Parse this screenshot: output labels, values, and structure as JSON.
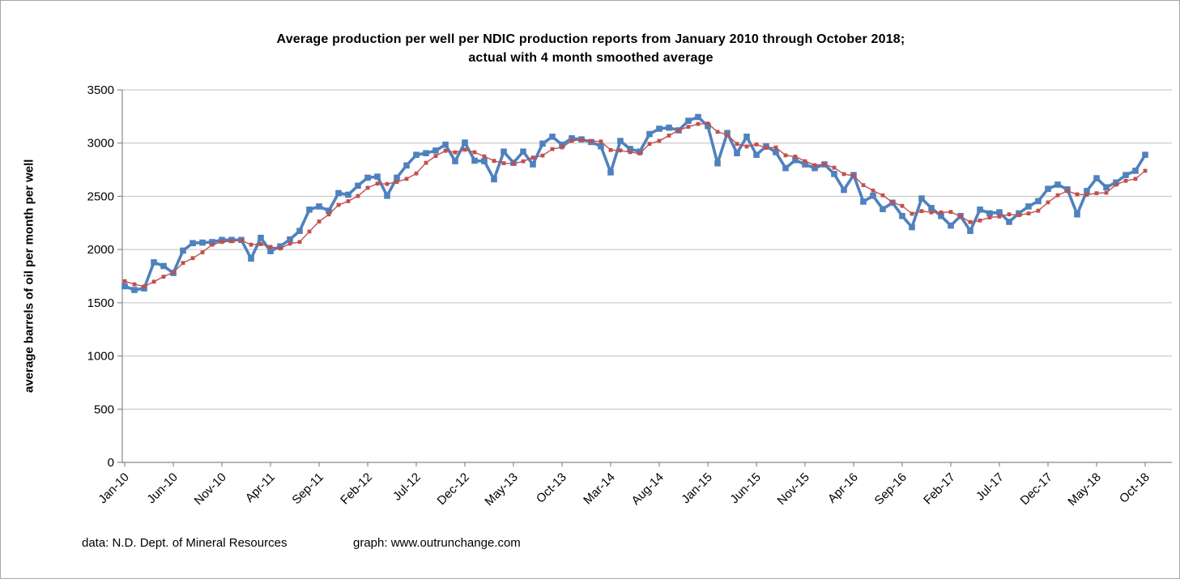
{
  "title": {
    "line1": "Average production per well per NDIC production reports from January 2010  through October 2018;",
    "line2": "actual with 4 month smoothed average"
  },
  "footer": {
    "data_source": "data: N.D. Dept. of Mineral Resources",
    "graph_credit": "graph:  www.outrunchange.com"
  },
  "colors": {
    "actual": "#4F81BD",
    "smoothed": "#C0504D",
    "gridline": "#C0C0C0",
    "axis": "#898989",
    "text": "#000000",
    "border": "#A6A6A6"
  },
  "chart_data": {
    "type": "line",
    "title": "Average production per well per NDIC production reports from January 2010 through October 2018; actual with 4 month smoothed average",
    "xlabel": "",
    "ylabel": "average barrels of oil per month per well",
    "ylim": [
      0,
      3500
    ],
    "y_ticks": [
      0,
      500,
      1000,
      1500,
      2000,
      2500,
      3000,
      3500
    ],
    "x_tick_labels": [
      "Jan-10",
      "Jun-10",
      "Nov-10",
      "Apr-11",
      "Sep-11",
      "Feb-12",
      "Jul-12",
      "Dec-12",
      "May-13",
      "Oct-13",
      "Mar-14",
      "Aug-14",
      "Jan-15",
      "Jun-15",
      "Nov-15",
      "Apr-16",
      "Sep-16",
      "Feb-17",
      "Jul-17",
      "Dec-17",
      "May-18",
      "Oct-18"
    ],
    "grid": true,
    "legend": "none",
    "x": [
      "Jan-10",
      "Feb-10",
      "Mar-10",
      "Apr-10",
      "May-10",
      "Jun-10",
      "Jul-10",
      "Aug-10",
      "Sep-10",
      "Oct-10",
      "Nov-10",
      "Dec-10",
      "Jan-11",
      "Feb-11",
      "Mar-11",
      "Apr-11",
      "May-11",
      "Jun-11",
      "Jul-11",
      "Aug-11",
      "Sep-11",
      "Oct-11",
      "Nov-11",
      "Dec-11",
      "Jan-12",
      "Feb-12",
      "Mar-12",
      "Apr-12",
      "May-12",
      "Jun-12",
      "Jul-12",
      "Aug-12",
      "Sep-12",
      "Oct-12",
      "Nov-12",
      "Dec-12",
      "Jan-13",
      "Feb-13",
      "Mar-13",
      "Apr-13",
      "May-13",
      "Jun-13",
      "Jul-13",
      "Aug-13",
      "Sep-13",
      "Oct-13",
      "Nov-13",
      "Dec-13",
      "Jan-14",
      "Feb-14",
      "Mar-14",
      "Apr-14",
      "May-14",
      "Jun-14",
      "Jul-14",
      "Aug-14",
      "Sep-14",
      "Oct-14",
      "Nov-14",
      "Dec-14",
      "Jan-15",
      "Feb-15",
      "Mar-15",
      "Apr-15",
      "May-15",
      "Jun-15",
      "Jul-15",
      "Aug-15",
      "Sep-15",
      "Oct-15",
      "Nov-15",
      "Dec-15",
      "Jan-16",
      "Feb-16",
      "Mar-16",
      "Apr-16",
      "May-16",
      "Jun-16",
      "Jul-16",
      "Aug-16",
      "Sep-16",
      "Oct-16",
      "Nov-16",
      "Dec-16",
      "Jan-17",
      "Feb-17",
      "Mar-17",
      "Apr-17",
      "May-17",
      "Jun-17",
      "Jul-17",
      "Aug-17",
      "Sep-17",
      "Oct-17",
      "Nov-17",
      "Dec-17",
      "Jan-18",
      "Feb-18",
      "Mar-18",
      "Apr-18",
      "May-18",
      "Jun-18",
      "Jul-18",
      "Aug-18",
      "Sep-18",
      "Oct-18"
    ],
    "series": [
      {
        "name": "actual",
        "values": [
          1655,
          1620,
          1635,
          1880,
          1845,
          1780,
          1990,
          2060,
          2065,
          2070,
          2090,
          2090,
          2090,
          1915,
          2110,
          1985,
          2030,
          2095,
          2175,
          2375,
          2405,
          2365,
          2530,
          2515,
          2600,
          2675,
          2685,
          2505,
          2675,
          2790,
          2890,
          2905,
          2930,
          2985,
          2830,
          3005,
          2835,
          2830,
          2660,
          2920,
          2815,
          2920,
          2800,
          2995,
          3060,
          2985,
          3045,
          3035,
          3010,
          2970,
          2725,
          3020,
          2945,
          2920,
          3085,
          3135,
          3145,
          3120,
          3210,
          3245,
          3160,
          2810,
          3095,
          2905,
          3060,
          2890,
          2970,
          2915,
          2765,
          2840,
          2800,
          2765,
          2800,
          2710,
          2560,
          2700,
          2450,
          2505,
          2380,
          2440,
          2315,
          2210,
          2480,
          2390,
          2315,
          2225,
          2315,
          2175,
          2375,
          2340,
          2350,
          2260,
          2340,
          2405,
          2455,
          2570,
          2610,
          2565,
          2330,
          2550,
          2670,
          2585,
          2630,
          2700,
          2740,
          2890
        ]
      },
      {
        "name": "4 month smoothed average",
        "values": [
          1703,
          1673,
          1653,
          1698,
          1745,
          1785,
          1874,
          1919,
          1974,
          2046,
          2071,
          2079,
          2085,
          2046,
          2051,
          2025,
          2010,
          2055,
          2071,
          2169,
          2263,
          2330,
          2419,
          2454,
          2503,
          2580,
          2619,
          2616,
          2635,
          2664,
          2715,
          2815,
          2879,
          2928,
          2913,
          2938,
          2914,
          2875,
          2833,
          2811,
          2806,
          2829,
          2864,
          2883,
          2944,
          2960,
          3021,
          3031,
          3019,
          3015,
          2935,
          2931,
          2915,
          2903,
          2993,
          3021,
          3071,
          3121,
          3153,
          3180,
          3184,
          3106,
          3078,
          2993,
          2968,
          2988,
          2956,
          2959,
          2885,
          2873,
          2830,
          2793,
          2801,
          2769,
          2709,
          2693,
          2605,
          2554,
          2509,
          2444,
          2410,
          2336,
          2361,
          2349,
          2349,
          2353,
          2311,
          2258,
          2273,
          2301,
          2310,
          2331,
          2323,
          2339,
          2365,
          2443,
          2510,
          2550,
          2519,
          2514,
          2529,
          2534,
          2609,
          2646,
          2664,
          2740
        ]
      }
    ]
  }
}
